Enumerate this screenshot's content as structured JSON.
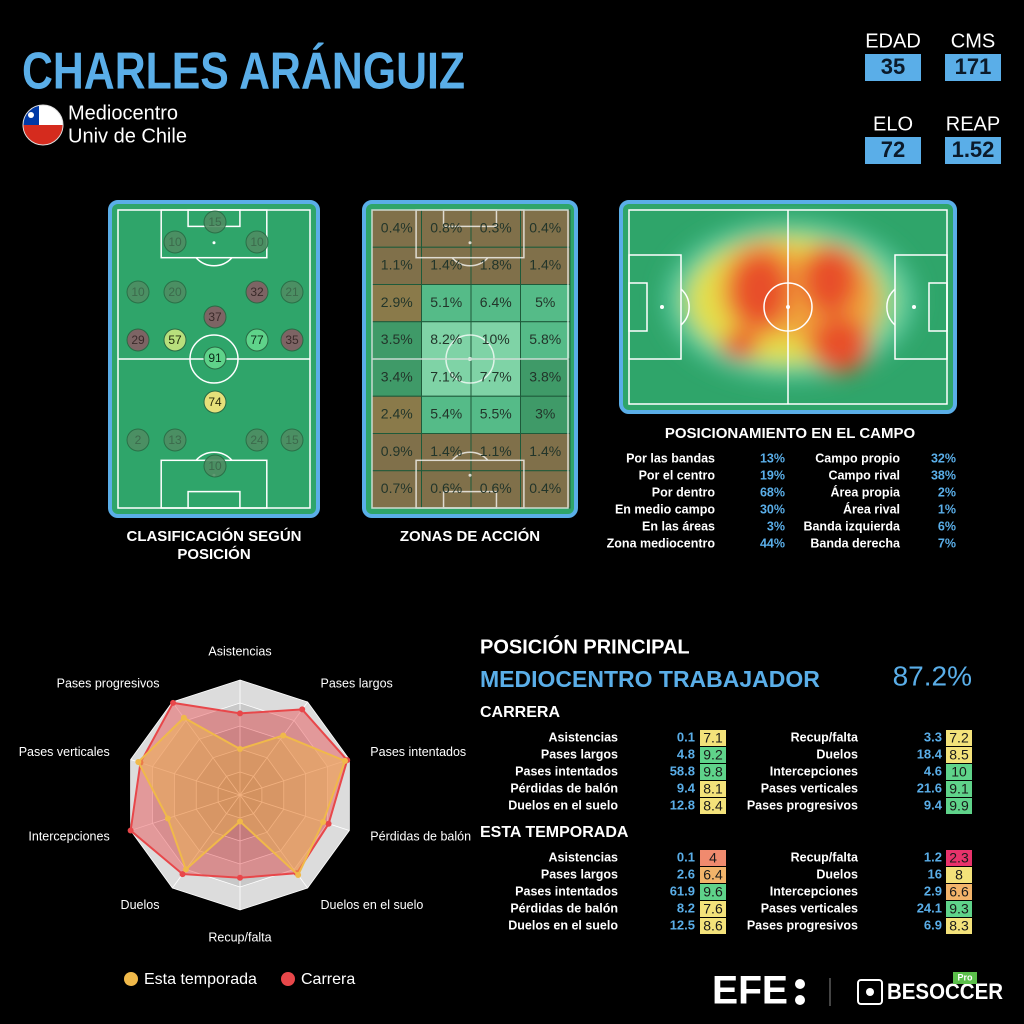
{
  "header": {
    "name": "CHARLES ARÁNGUIZ",
    "position": "Mediocentro",
    "club": "Univ de Chile"
  },
  "stats": [
    {
      "label": "EDAD",
      "value": 35
    },
    {
      "label": "CMS",
      "value": 171
    },
    {
      "label": "ELO",
      "value": 72
    },
    {
      "label": "REAP",
      "value": 1.52
    }
  ],
  "rating": {
    "caption": [
      "CLASIFICACIÓN SEGÚN",
      "POSICIÓN"
    ],
    "values": [
      15,
      10,
      10,
      10,
      20,
      32,
      21,
      37,
      29,
      57,
      77,
      35,
      91,
      74,
      2,
      13,
      24,
      15,
      10
    ]
  },
  "zones": {
    "caption": "ZONAS DE ACCIÓN",
    "cells": [
      [
        "0.4%",
        "0.8%",
        "0.3%",
        "0.4%"
      ],
      [
        "1.1%",
        "1.4%",
        "1.8%",
        "1.4%"
      ],
      [
        "2.9%",
        "5.1%",
        "6.4%",
        "5%"
      ],
      [
        "3.5%",
        "8.2%",
        "10%",
        "5.8%"
      ],
      [
        "3.4%",
        "7.1%",
        "7.7%",
        "3.8%"
      ],
      [
        "2.4%",
        "5.4%",
        "5.5%",
        "3%"
      ],
      [
        "0.9%",
        "1.4%",
        "1.1%",
        "1.4%"
      ],
      [
        "0.7%",
        "0.6%",
        "0.6%",
        "0.4%"
      ]
    ]
  },
  "positioning": {
    "title": "POSICIONAMIENTO EN EL CAMPO",
    "left": [
      {
        "label": "Por las bandas",
        "value": "13%"
      },
      {
        "label": "Por el centro",
        "value": "19%"
      },
      {
        "label": "Por dentro",
        "value": "68%"
      },
      {
        "label": "En medio campo",
        "value": "30%"
      },
      {
        "label": "En las áreas",
        "value": "3%"
      },
      {
        "label": "Zona mediocentro",
        "value": "44%"
      }
    ],
    "right": [
      {
        "label": "Campo propio",
        "value": "32%"
      },
      {
        "label": "Campo rival",
        "value": "38%"
      },
      {
        "label": "Área propia",
        "value": "2%"
      },
      {
        "label": "Área rival",
        "value": "1%"
      },
      {
        "label": "Banda izquierda",
        "value": "6%"
      },
      {
        "label": "Banda derecha",
        "value": "7%"
      }
    ]
  },
  "principal": {
    "title": "POSICIÓN PRINCIPAL",
    "role": "MEDIOCENTRO TRABAJADOR",
    "score": "87.2%"
  },
  "tables": [
    {
      "title": "CARRERA",
      "raw": [
        0.1,
        4.8,
        58.8,
        9.4,
        12.8,
        3.3,
        18.4,
        4.6,
        21.6,
        9.4
      ]
    },
    {
      "title": "ESTA TEMPORADA",
      "raw": [
        0.1,
        2.6,
        61.9,
        8.2,
        12.5,
        1.2,
        16,
        2.9,
        24.1,
        6.9
      ]
    }
  ],
  "chart_data": {
    "type": "radar",
    "categories": [
      "Asistencias",
      "Pases largos",
      "Pases intentados",
      "Pérdidas de balón",
      "Duelos en el suelo",
      "Recup/falta",
      "Duelos",
      "Intercepciones",
      "Pases verticales",
      "Pases progresivos"
    ],
    "series": [
      {
        "name": "Esta temporada",
        "color": "#f0b94a",
        "values": [
          4,
          6.4,
          9.6,
          7.6,
          8.6,
          2.3,
          8,
          6.6,
          9.3,
          8.3
        ]
      },
      {
        "name": "Carrera",
        "color": "#e8474a",
        "values": [
          7.1,
          9.2,
          9.8,
          8.1,
          8.4,
          7.2,
          8.5,
          10,
          9.1,
          9.9
        ]
      }
    ],
    "ylim": [
      0,
      10
    ]
  },
  "logos": {
    "efe": "EFE",
    "besoccer": "BESOCCER",
    "tag": "Pro"
  }
}
